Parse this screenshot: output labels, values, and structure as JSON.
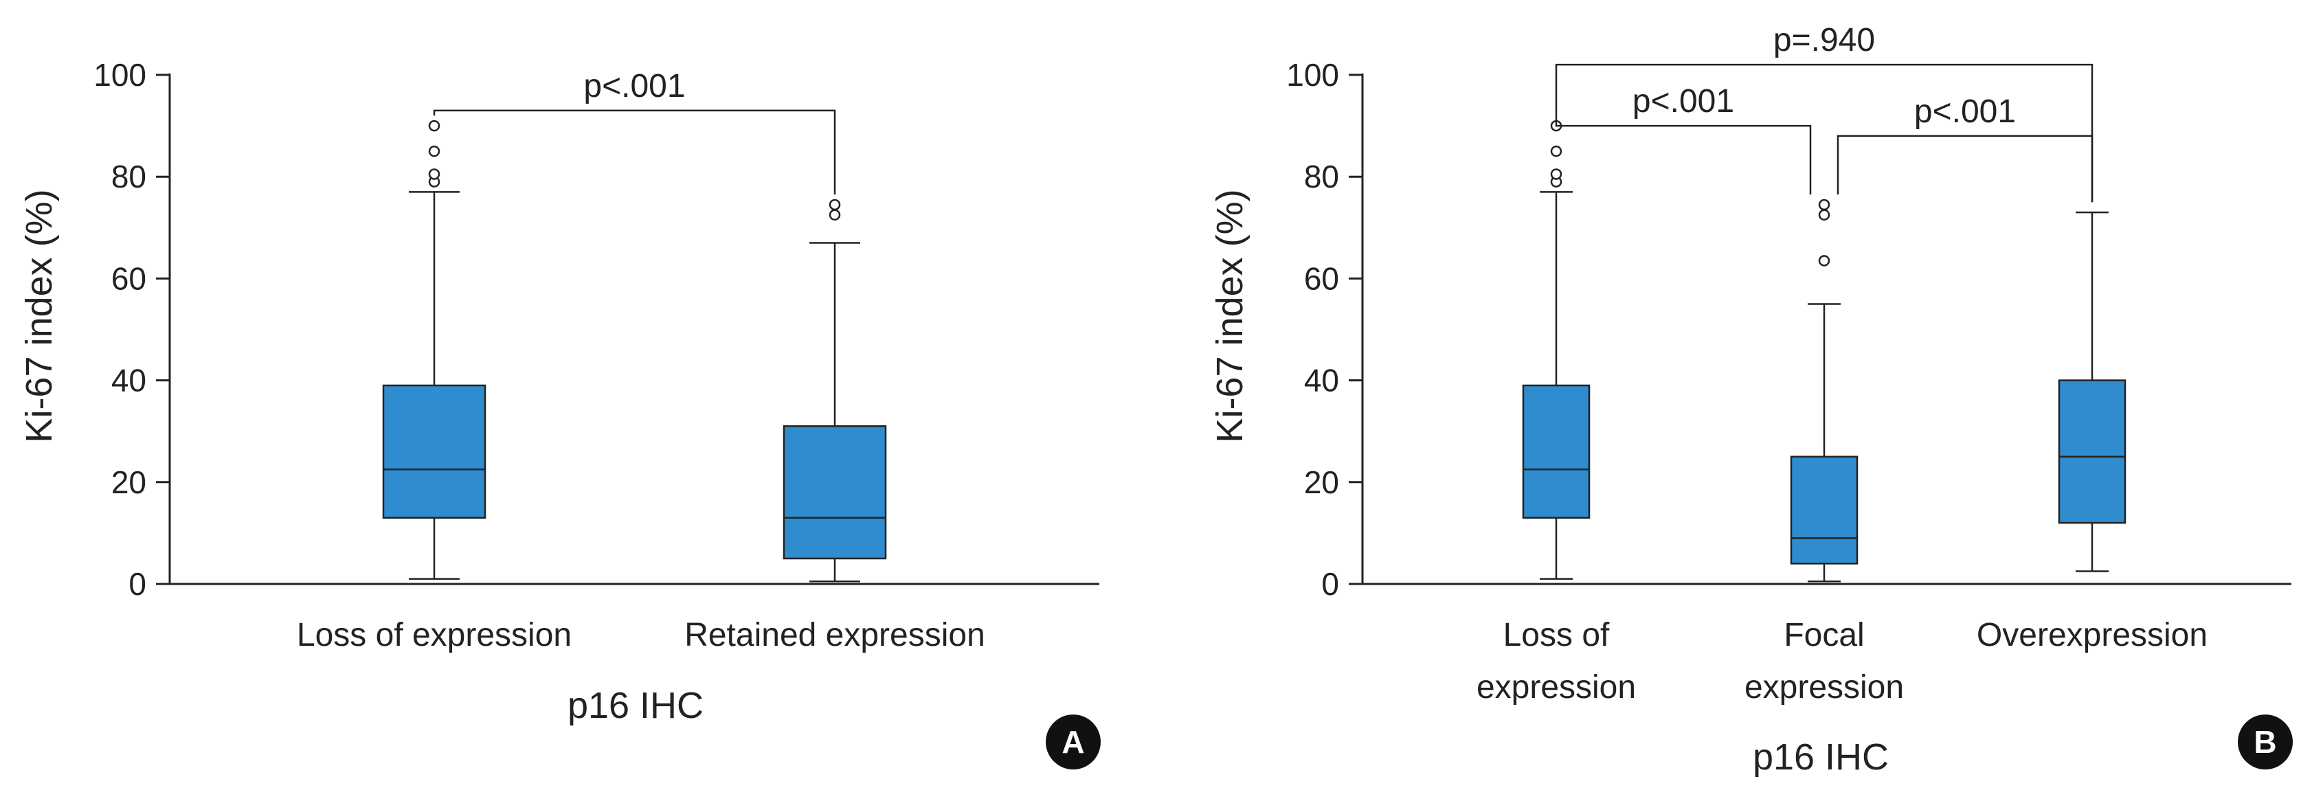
{
  "box_color": "#2f8ccf",
  "line_color": "#222222",
  "chart_data": [
    {
      "panel": "A",
      "type": "box",
      "ylabel": "Ki-67 index (%)",
      "xlabel": "p16 IHC",
      "ylim": [
        0,
        100
      ],
      "yticks": [
        0,
        20,
        40,
        60,
        80,
        100
      ],
      "categories": [
        {
          "lines": [
            "Loss of expression"
          ],
          "min": 1,
          "q1": 13,
          "median": 22.5,
          "q3": 39,
          "max": 77,
          "outliers": [
            79,
            80.5,
            85,
            90
          ]
        },
        {
          "lines": [
            "Retained expression"
          ],
          "min": 0.5,
          "q1": 5,
          "median": 13,
          "q3": 31,
          "max": 67,
          "outliers": [
            72.5,
            74.5
          ]
        }
      ],
      "comparisons": [
        {
          "from": 0,
          "to": 1,
          "label": "p<.001",
          "y": 93
        }
      ]
    },
    {
      "panel": "B",
      "type": "box",
      "ylabel": "Ki-67 index (%)",
      "xlabel": "p16 IHC",
      "ylim": [
        0,
        100
      ],
      "yticks": [
        0,
        20,
        40,
        60,
        80,
        100
      ],
      "categories": [
        {
          "lines": [
            "Loss of",
            "expression"
          ],
          "min": 1,
          "q1": 13,
          "median": 22.5,
          "q3": 39,
          "max": 77,
          "outliers": [
            79,
            80.5,
            85,
            90
          ]
        },
        {
          "lines": [
            "Focal",
            "expression"
          ],
          "min": 0.5,
          "q1": 4,
          "median": 9,
          "q3": 25,
          "max": 55,
          "outliers": [
            63.5,
            72.5,
            74.5
          ]
        },
        {
          "lines": [
            "Overexpression"
          ],
          "min": 2.5,
          "q1": 12,
          "median": 25,
          "q3": 40,
          "max": 73,
          "outliers": []
        }
      ],
      "comparisons": [
        {
          "from": 0,
          "to": 2,
          "label": "p=.940",
          "y": 102
        },
        {
          "from": 0,
          "to": 1,
          "label": "p<.001",
          "y": 90
        },
        {
          "from": 1,
          "to": 2,
          "label": "p<.001",
          "y": 88
        }
      ]
    }
  ]
}
